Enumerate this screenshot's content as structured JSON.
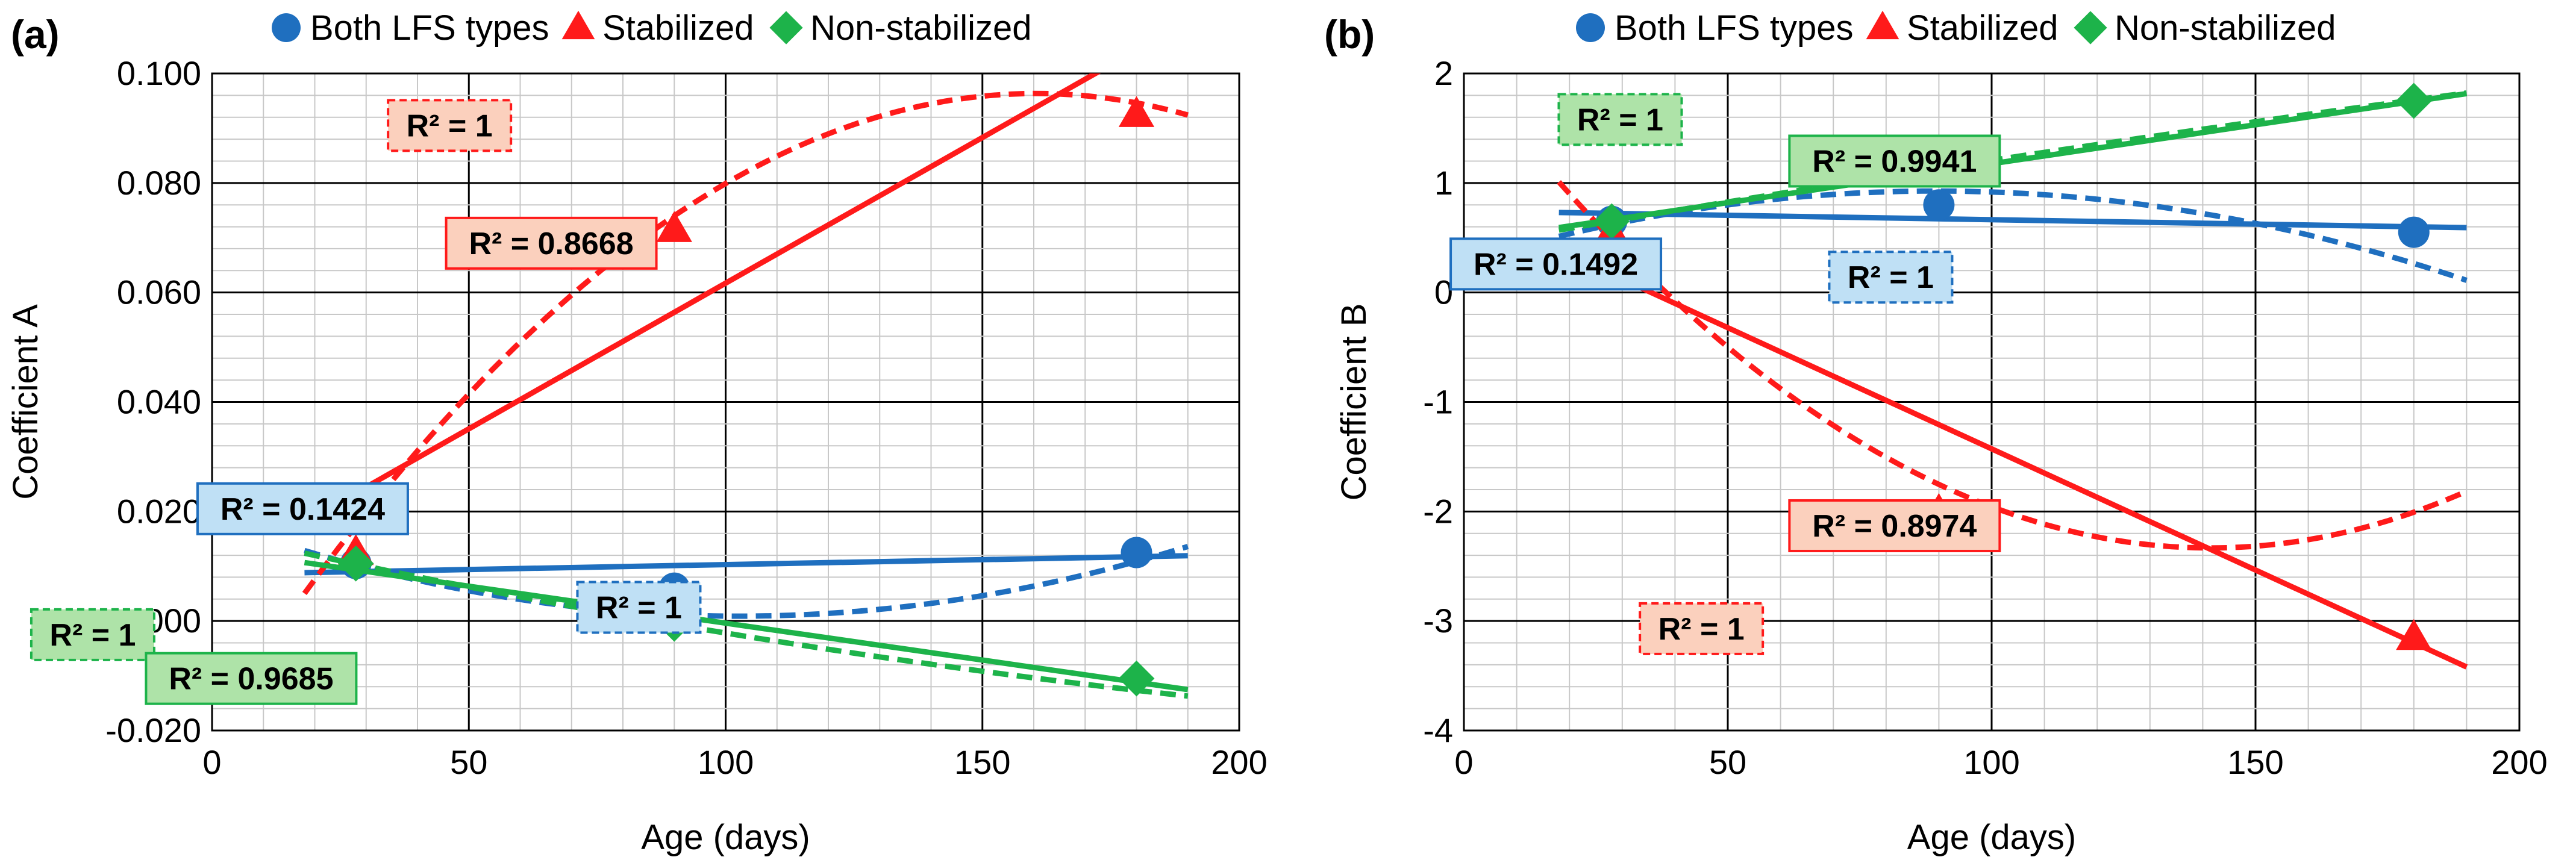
{
  "colors": {
    "blue": "#1f6fbf",
    "red": "#ff1a1a",
    "green": "#1db34a",
    "blue_fill": "#bfe0f5",
    "red_fill": "#fbd0bd",
    "green_fill": "#aee3a8"
  },
  "chart_data": [
    {
      "panel_label": "(a)",
      "type": "scatter",
      "xlabel": "Age (days)",
      "ylabel": "Coefficient A",
      "xlim": [
        0,
        200
      ],
      "ylim": [
        -0.02,
        0.1
      ],
      "x_major_step": 50,
      "y_major_step": 0.02,
      "x_ticks": [
        "0",
        "50",
        "100",
        "150",
        "200"
      ],
      "y_ticks": [
        "-0.020",
        "0.000",
        "0.020",
        "0.040",
        "0.060",
        "0.080",
        "0.100"
      ],
      "grid": true,
      "legend_position": "top",
      "series": [
        {
          "name": "Both LFS types",
          "color": "blue",
          "marker": "circle",
          "points": [
            [
              28,
              0.0105
            ],
            [
              90,
              0.006
            ],
            [
              180,
              0.0125
            ]
          ],
          "linear_fit": {
            "slope": 1.8e-05,
            "intercept": 0.0085,
            "r2_label": "R² = 0.1424"
          },
          "poly_fit": {
            "coef": [
              0.0185,
              -0.000343,
              1.67e-06
            ],
            "r2_label": "R² = 1"
          }
        },
        {
          "name": "Stabilized",
          "color": "red",
          "marker": "triangle",
          "points": [
            [
              28,
              0.0125
            ],
            [
              90,
              0.0715
            ],
            [
              180,
              0.0925
            ]
          ],
          "linear_fit": {
            "slope": 0.000532,
            "intercept": 0.0085,
            "r2_label": "R² = 0.8668"
          },
          "poly_fit": {
            "coef": [
              -0.0195,
              0.001444,
              -4.5e-06
            ],
            "r2_label": "R² = 1"
          }
        },
        {
          "name": "Non-stabilized",
          "color": "green",
          "marker": "diamond",
          "points": [
            [
              28,
              0.0105
            ],
            [
              90,
              -0.0005
            ],
            [
              180,
              -0.0105
            ]
          ],
          "linear_fit": {
            "slope": -0.0001349,
            "intercept": 0.0131,
            "r2_label": "R² = 0.9685"
          },
          "poly_fit": {
            "coef": [
              0.0161,
              -0.000212,
              2.9e-07
            ],
            "r2_label": "R² = 1"
          }
        }
      ],
      "labels": [
        {
          "text": "R² = 1",
          "color": "red",
          "dashed": true,
          "x": 0.1745,
          "y": 0.0905
        },
        {
          "text": "R² = 0.8668",
          "color": "red",
          "dashed": false,
          "x": 0.214,
          "y": 0.069
        },
        {
          "text": "R² = 0.1424",
          "color": "blue",
          "dashed": false,
          "x": 0.1175,
          "y": 0.0205
        },
        {
          "text": "R² = 1",
          "color": "blue",
          "dashed": true,
          "x": 0.248,
          "y": 0.0025
        },
        {
          "text": "R² = 1",
          "color": "green",
          "dashed": true,
          "x": 0.036,
          "y": -0.0025
        },
        {
          "text": "R² = 0.9685",
          "color": "green",
          "dashed": false,
          "x": 0.0975,
          "y": -0.0105
        }
      ]
    },
    {
      "panel_label": "(b)",
      "type": "scatter",
      "xlabel": "Age (days)",
      "ylabel": "Coefficient B",
      "xlim": [
        0,
        200
      ],
      "ylim": [
        -4,
        2
      ],
      "x_major_step": 50,
      "y_major_step": 1,
      "x_ticks": [
        "0",
        "50",
        "100",
        "150",
        "200"
      ],
      "y_ticks": [
        "-4",
        "-3",
        "-2",
        "-1",
        "0",
        "1",
        "2"
      ],
      "grid": true,
      "legend_position": "top",
      "series": [
        {
          "name": "Both LFS types",
          "color": "blue",
          "marker": "circle",
          "points": [
            [
              28,
              0.65
            ],
            [
              90,
              0.8
            ],
            [
              180,
              0.55
            ]
          ],
          "linear_fit": {
            "slope": -0.000806,
            "intercept": 0.745,
            "r2_label": "R² = 0.1492"
          },
          "poly_fit": {
            "coef": [
              0.2786,
              0.01447,
              -8.08e-05
            ],
            "r2_label": "R² = 1"
          }
        },
        {
          "name": "Stabilized",
          "color": "red",
          "marker": "triangle",
          "points": [
            [
              28,
              0.55
            ],
            [
              90,
              -2.0
            ],
            [
              180,
              -3.15
            ]
          ],
          "linear_fit": {
            "slope": -0.02213,
            "intercept": 0.785,
            "r2_label": "R² = 0.8974"
          },
          "poly_fit": {
            "coef": [
              2.0556,
              -0.06206,
              0.0002194
            ],
            "r2_label": "R² = 1"
          }
        },
        {
          "name": "Non-stabilized",
          "color": "green",
          "marker": "diamond",
          "points": [
            [
              28,
              0.65
            ],
            [
              90,
              1.15
            ],
            [
              180,
              1.75
            ]
          ],
          "linear_fit": {
            "slope": 0.00711,
            "intercept": 0.465,
            "r2_label": "R² = 0.9941"
          },
          "poly_fit": {
            "coef": [
              0.4193,
              0.008426,
              -5.5e-06
            ],
            "r2_label": "R² = 1"
          }
        }
      ],
      "labels": [
        {
          "text": "R² = 1",
          "color": "green",
          "dashed": true,
          "x": 0.143,
          "y": 1.58
        },
        {
          "text": "R² = 0.9941",
          "color": "green",
          "dashed": false,
          "x": 0.2495,
          "y": 1.2
        },
        {
          "text": "R² = 0.1492",
          "color": "blue",
          "dashed": false,
          "x": 0.118,
          "y": 0.26
        },
        {
          "text": "R² = 1",
          "color": "blue",
          "dashed": true,
          "x": 0.248,
          "y": 0.14
        },
        {
          "text": "R² = 0.8974",
          "color": "red",
          "dashed": false,
          "x": 0.2495,
          "y": -2.13
        },
        {
          "text": "R² = 1",
          "color": "red",
          "dashed": true,
          "x": 0.1745,
          "y": -3.07
        }
      ]
    }
  ]
}
